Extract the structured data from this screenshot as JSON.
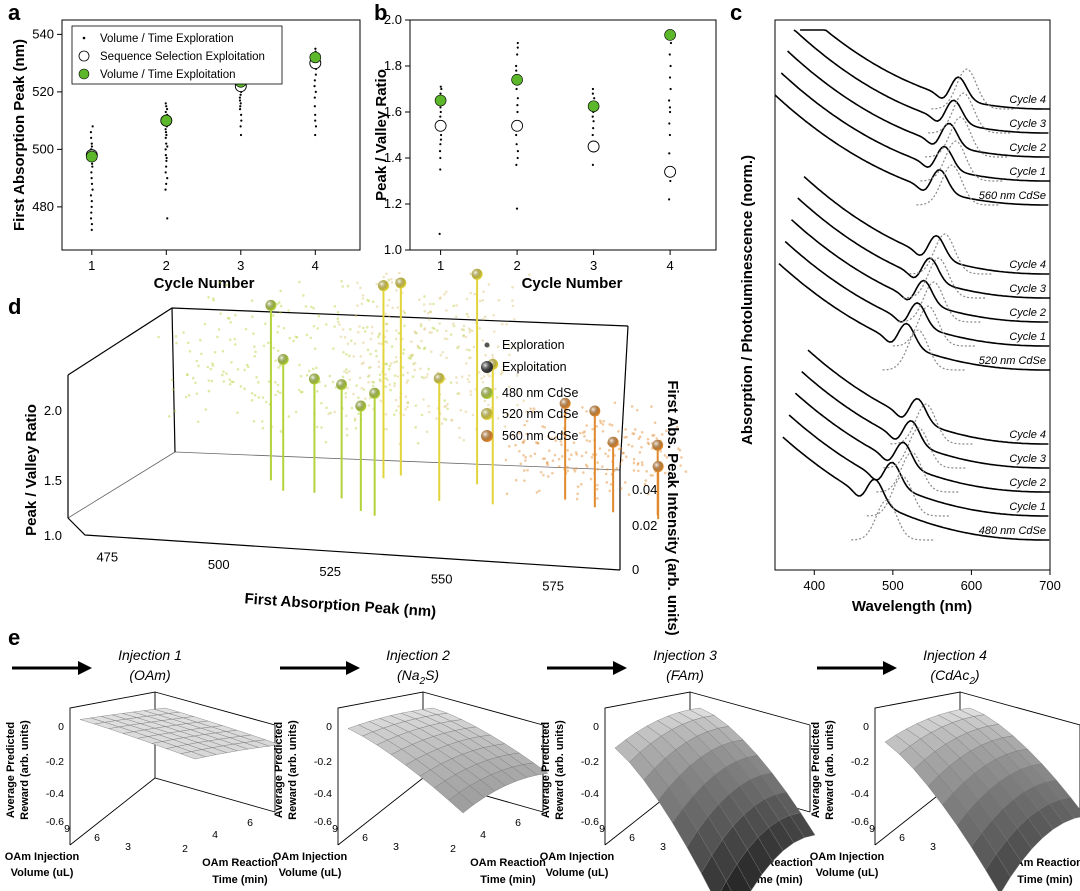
{
  "panel_labels": [
    "a",
    "b",
    "c",
    "d",
    "e"
  ],
  "chart_data": [
    {
      "id": "a",
      "type": "scatter",
      "xlabel": "Cycle Number",
      "ylabel": "First Absorption Peak (nm)",
      "xlim": [
        0.6,
        4.6
      ],
      "ylim": [
        465,
        545
      ],
      "xticks": [
        "1",
        "2",
        "3",
        "4"
      ],
      "yticks": [
        "480",
        "500",
        "520",
        "540"
      ],
      "legend": [
        "Volume / Time Exploration",
        "Sequence Selection Exploitation",
        "Volume / Time Exploitation"
      ],
      "exploration": [
        {
          "x": 1,
          "y": [
            472,
            474,
            476,
            478,
            480,
            482,
            484,
            486,
            488,
            490,
            492,
            494,
            495,
            496,
            497,
            498,
            499,
            500,
            501,
            502,
            504,
            506,
            508
          ]
        },
        {
          "x": 2,
          "y": [
            476,
            486,
            488,
            490,
            492,
            494,
            496,
            497,
            498,
            500,
            501,
            502,
            504,
            505,
            506,
            507,
            508,
            509,
            510,
            511,
            512,
            513,
            514,
            515,
            516
          ]
        },
        {
          "x": 3,
          "y": [
            505,
            508,
            510,
            512,
            514,
            515,
            516,
            517,
            518,
            519,
            520,
            521,
            522,
            523,
            524,
            525
          ]
        },
        {
          "x": 4,
          "y": [
            505,
            508,
            510,
            512,
            515,
            518,
            520,
            522,
            524,
            526,
            528,
            530,
            531,
            532,
            533,
            534,
            535
          ]
        }
      ],
      "sequence_exploitation": [
        {
          "x": 1,
          "y": 498
        },
        {
          "x": 2,
          "y": 510
        },
        {
          "x": 3,
          "y": 522
        },
        {
          "x": 4,
          "y": 530
        }
      ],
      "volume_time_exploitation": [
        {
          "x": 1,
          "y": 497.5
        },
        {
          "x": 2,
          "y": 510
        },
        {
          "x": 3,
          "y": 523.5
        },
        {
          "x": 4,
          "y": 532
        }
      ]
    },
    {
      "id": "b",
      "type": "scatter",
      "xlabel": "Cycle Number",
      "ylabel": "Peak / Valley Ratio",
      "xlim": [
        0.6,
        4.6
      ],
      "ylim": [
        1.0,
        2.0
      ],
      "xticks": [
        "1",
        "2",
        "3",
        "4"
      ],
      "yticks": [
        "1.0",
        "1.2",
        "1.4",
        "1.6",
        "1.8",
        "2.0"
      ],
      "exploration": [
        {
          "x": 1,
          "y": [
            1.07,
            1.35,
            1.4,
            1.43,
            1.46,
            1.48,
            1.5,
            1.52,
            1.54,
            1.56,
            1.58,
            1.6,
            1.62,
            1.64,
            1.66,
            1.68,
            1.7,
            1.71
          ]
        },
        {
          "x": 2,
          "y": [
            1.18,
            1.37,
            1.4,
            1.43,
            1.46,
            1.5,
            1.53,
            1.56,
            1.6,
            1.63,
            1.66,
            1.7,
            1.72,
            1.74,
            1.76,
            1.78,
            1.8,
            1.85,
            1.88,
            1.9
          ]
        },
        {
          "x": 3,
          "y": [
            1.37,
            1.45,
            1.5,
            1.53,
            1.56,
            1.58,
            1.6,
            1.62,
            1.64,
            1.66,
            1.68,
            1.7
          ]
        },
        {
          "x": 4,
          "y": [
            1.22,
            1.3,
            1.42,
            1.5,
            1.55,
            1.6,
            1.62,
            1.65,
            1.7,
            1.75,
            1.8,
            1.85,
            1.9,
            1.93
          ]
        }
      ],
      "sequence_exploitation": [
        {
          "x": 1,
          "y": 1.54
        },
        {
          "x": 2,
          "y": 1.54
        },
        {
          "x": 3,
          "y": 1.45
        },
        {
          "x": 4,
          "y": 1.34
        }
      ],
      "volume_time_exploitation": [
        {
          "x": 1,
          "y": 1.65
        },
        {
          "x": 2,
          "y": 1.74
        },
        {
          "x": 3,
          "y": 1.625
        },
        {
          "x": 4,
          "y": 1.935
        }
      ]
    },
    {
      "id": "c",
      "type": "line",
      "xlabel": "Wavelength (nm)",
      "ylabel": "Absorption / Photoluminescence (norm.)",
      "xlim": [
        350,
        700
      ],
      "xticks": [
        "400",
        "500",
        "600",
        "700"
      ],
      "groups": [
        {
          "name": "560 nm CdSe",
          "target_nm": 560,
          "series": [
            {
              "label": "560 nm CdSe",
              "peak_nm": 560,
              "pl_nm": 575
            },
            {
              "label": "Cycle 1",
              "peak_nm": 566,
              "pl_nm": 580
            },
            {
              "label": "Cycle 2",
              "peak_nm": 572,
              "pl_nm": 586
            },
            {
              "label": "Cycle 3",
              "peak_nm": 578,
              "pl_nm": 590
            },
            {
              "label": "Cycle 4",
              "peak_nm": 584,
              "pl_nm": 594
            }
          ]
        },
        {
          "name": "520 nm CdSe",
          "target_nm": 520,
          "series": [
            {
              "label": "520 nm CdSe",
              "peak_nm": 518,
              "pl_nm": 532
            },
            {
              "label": "Cycle 1",
              "peak_nm": 532,
              "pl_nm": 545
            },
            {
              "label": "Cycle 2",
              "peak_nm": 540,
              "pl_nm": 552
            },
            {
              "label": "Cycle 3",
              "peak_nm": 548,
              "pl_nm": 558
            },
            {
              "label": "Cycle 4",
              "peak_nm": 556,
              "pl_nm": 566
            }
          ]
        },
        {
          "name": "480 nm CdSe",
          "target_nm": 480,
          "series": [
            {
              "label": "480 nm CdSe",
              "peak_nm": 478,
              "pl_nm": 492
            },
            {
              "label": "Cycle 1",
              "peak_nm": 500,
              "pl_nm": 512
            },
            {
              "label": "Cycle 2",
              "peak_nm": 514,
              "pl_nm": 524
            },
            {
              "label": "Cycle 3",
              "peak_nm": 524,
              "pl_nm": 533
            },
            {
              "label": "Cycle 4",
              "peak_nm": 532,
              "pl_nm": 542
            }
          ]
        }
      ]
    },
    {
      "id": "d",
      "type": "scatter",
      "xlabel": "First Absorption Peak (nm)",
      "ylabel": "Peak / Valley Ratio",
      "zlabel": "First Abs. Peak Intensity (arb. units)",
      "xlim": [
        470,
        590
      ],
      "ylim": [
        1.0,
        2.2
      ],
      "zlim": [
        0,
        0.045
      ],
      "xticks": [
        "475",
        "500",
        "525",
        "550",
        "575"
      ],
      "yticks": [
        "1.0",
        "1.5",
        "2.0"
      ],
      "zticks": [
        "0",
        "0.02",
        "0.04"
      ],
      "legend": [
        "Exploration",
        "Exploitation",
        "480 nm CdSe",
        "520 nm CdSe",
        "560 nm CdSe"
      ],
      "exploitation": [
        {
          "group": "480 nm CdSe",
          "x": 496,
          "y": 2.0,
          "z": 0.035
        },
        {
          "group": "480 nm CdSe",
          "x": 501,
          "y": 1.75,
          "z": 0.03
        },
        {
          "group": "480 nm CdSe",
          "x": 508,
          "y": 1.65,
          "z": 0.03
        },
        {
          "group": "480 nm CdSe",
          "x": 515,
          "y": 1.65,
          "z": 0.028
        },
        {
          "group": "480 nm CdSe",
          "x": 522,
          "y": 1.6,
          "z": 0.022
        },
        {
          "group": "480 nm CdSe",
          "x": 526,
          "y": 1.7,
          "z": 0.02
        },
        {
          "group": "520 nm CdSe",
          "x": 519,
          "y": 2.1,
          "z": 0.04
        },
        {
          "group": "520 nm CdSe",
          "x": 522,
          "y": 2.1,
          "z": 0.042
        },
        {
          "group": "520 nm CdSe",
          "x": 540,
          "y": 2.2,
          "z": 0.04
        },
        {
          "group": "520 nm CdSe",
          "x": 536,
          "y": 1.7,
          "z": 0.03
        },
        {
          "group": "520 nm CdSe",
          "x": 548,
          "y": 1.8,
          "z": 0.03
        },
        {
          "group": "560 nm CdSe",
          "x": 562,
          "y": 1.55,
          "z": 0.035
        },
        {
          "group": "560 nm CdSe",
          "x": 570,
          "y": 1.55,
          "z": 0.032
        },
        {
          "group": "560 nm CdSe",
          "x": 575,
          "y": 1.4,
          "z": 0.03
        },
        {
          "group": "560 nm CdSe",
          "x": 585,
          "y": 1.4,
          "z": 0.03
        },
        {
          "group": "560 nm CdSe",
          "x": 586,
          "y": 1.3,
          "z": 0.028
        }
      ],
      "colors": {
        "480 nm CdSe": "#b4d23a",
        "520 nm CdSe": "#e2d43a",
        "560 nm CdSe": "#e0892d"
      }
    },
    {
      "id": "e",
      "type": "surface",
      "zlabel": "Average Predicted Reward (arb. units)",
      "xlabel": "OAm Injection Volume (uL)",
      "ylabel": "OAm Reaction Time (min)",
      "zticks": [
        "0",
        "-0.2",
        "-0.4",
        "-0.6"
      ],
      "xticks": [
        "9",
        "6",
        "3"
      ],
      "yticks": [
        "2",
        "4",
        "6"
      ],
      "panels": [
        {
          "title": "Injection 1",
          "reagent": "(OAm)",
          "flatness": 0.05
        },
        {
          "title": "Injection 2",
          "reagent_main": "(Na",
          "reagent_sub": "2",
          "reagent_end": "S)",
          "flatness": 0.35
        },
        {
          "title": "Injection 3",
          "reagent": "(FAm)",
          "flatness": 1.0
        },
        {
          "title": "Injection 4",
          "reagent_main": "(CdAc",
          "reagent_sub": "2",
          "reagent_end": ")",
          "flatness": 0.8
        }
      ]
    }
  ]
}
